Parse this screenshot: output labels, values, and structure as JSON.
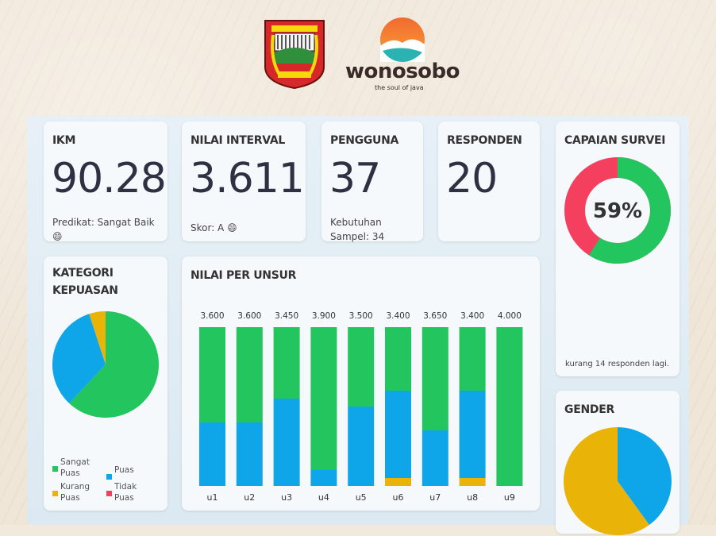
{
  "header": {
    "brand_name": "wonosobo",
    "brand_tagline": "the soul of java"
  },
  "colors": {
    "sangat_puas": "#22c55e",
    "puas": "#0ea5e9",
    "kurang_puas": "#eab308",
    "tidak_puas": "#f43f5e"
  },
  "stats": {
    "ikm": {
      "title": "IKM",
      "value": "90.28",
      "sub": "Predikat: Sangat Baik 😄"
    },
    "interval": {
      "title": "NILAI INTERVAL",
      "value": "3.611",
      "sub": "Skor: A 😄"
    },
    "pengguna": {
      "title": "PENGGUNA",
      "value": "37",
      "sub": "Kebutuhan Sampel: 34"
    },
    "responden": {
      "title": "RESPONDEN",
      "value": "20"
    }
  },
  "capaian": {
    "title": "CAPAIAN SURVEI",
    "percent_label": "59%",
    "percent": 59,
    "note": "kurang 14 responden lagi."
  },
  "kategori": {
    "title": "KATEGORI KEPUASAN",
    "legend": [
      {
        "label": "Sangat Puas",
        "color": "#22c55e"
      },
      {
        "label": "Puas",
        "color": "#0ea5e9"
      },
      {
        "label": "Kurang Puas",
        "color": "#eab308"
      },
      {
        "label": "Tidak Puas",
        "color": "#f43f5e"
      }
    ],
    "chart_data": {
      "type": "pie",
      "labels": [
        "Sangat Puas",
        "Puas",
        "Kurang Puas",
        "Tidak Puas"
      ],
      "values": [
        62,
        33,
        5,
        0
      ]
    }
  },
  "unsur": {
    "title": "NILAI PER UNSUR",
    "chart_data": {
      "type": "bar",
      "categories": [
        "u1",
        "u2",
        "u3",
        "u4",
        "u5",
        "u6",
        "u7",
        "u8",
        "u9"
      ],
      "labels": [
        "3.600",
        "3.600",
        "3.450",
        "3.900",
        "3.500",
        "3.400",
        "3.650",
        "3.400",
        "4.000"
      ],
      "values": [
        3.6,
        3.6,
        3.45,
        3.9,
        3.5,
        3.4,
        3.65,
        3.4,
        4.0
      ],
      "series": [
        {
          "name": "Sangat Puas",
          "values": [
            12,
            12,
            9,
            18,
            10,
            8,
            13,
            8,
            20
          ]
        },
        {
          "name": "Puas",
          "values": [
            8,
            8,
            11,
            2,
            10,
            11,
            7,
            11,
            0
          ]
        },
        {
          "name": "Kurang Puas",
          "values": [
            0,
            0,
            0,
            0,
            0,
            1,
            0,
            1,
            0
          ]
        }
      ],
      "ylim": [
        0,
        20
      ]
    }
  },
  "gender": {
    "title": "GENDER",
    "chart_data": {
      "type": "pie",
      "values": [
        60,
        40
      ]
    }
  }
}
